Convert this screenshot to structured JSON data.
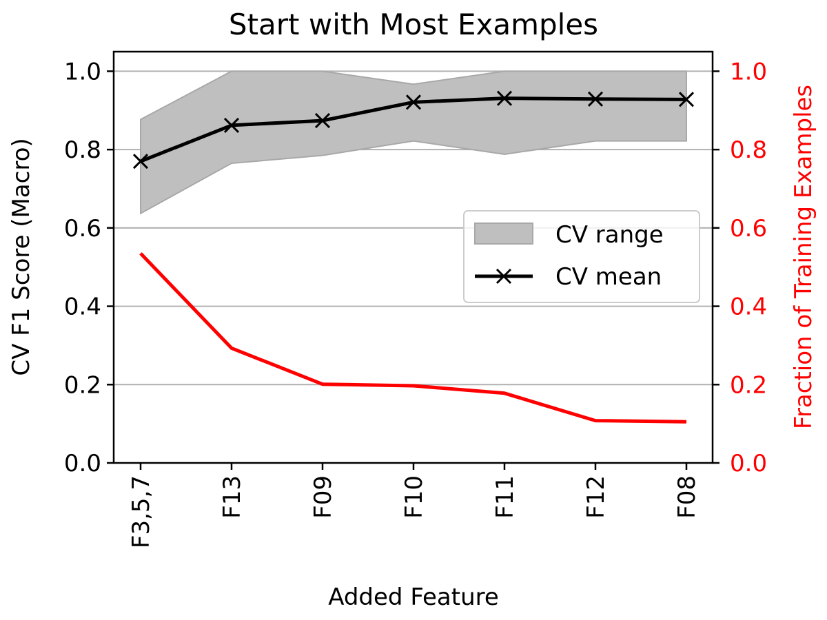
{
  "chart_data": {
    "type": "line",
    "title": "Start with Most Examples",
    "xlabel": "Added Feature",
    "ylabel": "CV F1 Score (Macro)",
    "y2label": "Fraction of Training Examples",
    "categories": [
      "F3,5,7",
      "F13",
      "F09",
      "F10",
      "F11",
      "F12",
      "F08"
    ],
    "ylim": [
      0,
      1.05
    ],
    "y2lim": [
      0,
      1.05
    ],
    "yticks": [
      "0.0",
      "0.2",
      "0.4",
      "0.6",
      "0.8",
      "1.0"
    ],
    "y2ticks": [
      "0.0",
      "0.2",
      "0.4",
      "0.6",
      "0.8",
      "1.0"
    ],
    "grid": "horizontal",
    "legend_position": "center-right",
    "series": [
      {
        "name": "CV range",
        "kind": "band",
        "axis": "left",
        "color": "#bfbfbf",
        "lower": [
          0.637,
          0.765,
          0.785,
          0.822,
          0.788,
          0.822,
          0.822
        ],
        "upper": [
          0.877,
          1.0,
          1.0,
          0.967,
          1.0,
          1.0,
          1.0
        ]
      },
      {
        "name": "CV mean",
        "kind": "line",
        "axis": "left",
        "marker": "x",
        "color": "#000000",
        "values": [
          0.77,
          0.862,
          0.874,
          0.921,
          0.931,
          0.929,
          0.928
        ]
      },
      {
        "kind": "line",
        "axis": "right",
        "color": "#ff0000",
        "values": [
          0.535,
          0.293,
          0.201,
          0.197,
          0.178,
          0.108,
          0.105
        ]
      }
    ],
    "colors": {
      "right_axis": "#ff0000",
      "grid": "#b0b0b0"
    }
  }
}
